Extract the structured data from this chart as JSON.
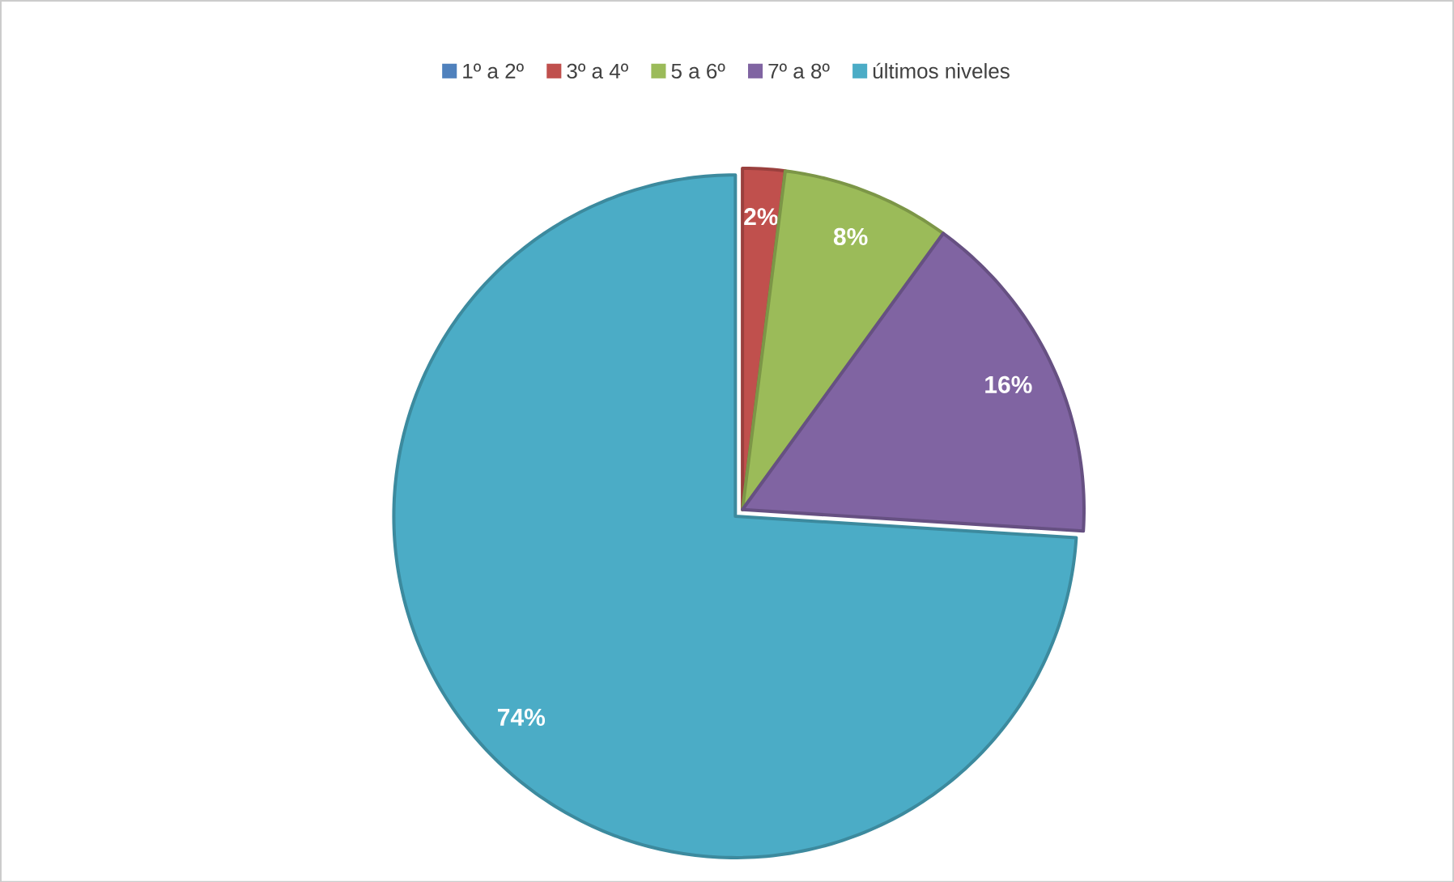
{
  "chart_data": {
    "type": "pie",
    "legend": "top",
    "categories": [
      "1º a 2º",
      "3º a 4º",
      "5 a 6º",
      "7º a 8º",
      "últimos niveles"
    ],
    "values": [
      0,
      2,
      8,
      16,
      74
    ],
    "value_labels": [
      null,
      "2%",
      "8%",
      "16%",
      "74%"
    ],
    "colors": [
      "#4f81bd",
      "#c0504d",
      "#9bbb59",
      "#8064a2",
      "#4bacc6"
    ]
  }
}
